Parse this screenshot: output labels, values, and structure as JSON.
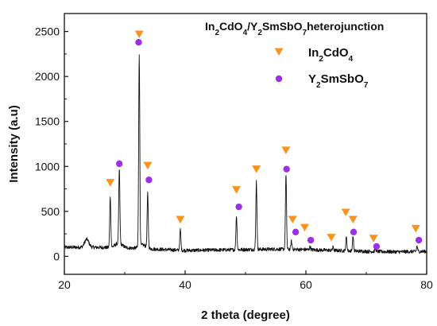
{
  "chart_data": {
    "type": "line",
    "title_parts": [
      {
        "t": "In",
        "sub": false
      },
      {
        "t": "2",
        "sub": true
      },
      {
        "t": "CdO",
        "sub": false
      },
      {
        "t": "4",
        "sub": true
      },
      {
        "t": "/Y",
        "sub": false
      },
      {
        "t": "2",
        "sub": true
      },
      {
        "t": "SmSbO",
        "sub": false
      },
      {
        "t": "7",
        "sub": true
      },
      {
        "t": "heterojunction",
        "sub": false
      }
    ],
    "xlabel": "2 theta (degree)",
    "ylabel": "Intensity (a.u)",
    "xlim": [
      20,
      80
    ],
    "ylim": [
      -200,
      2700
    ],
    "x_ticks": [
      20,
      40,
      60,
      80
    ],
    "y_ticks": [
      0,
      500,
      1000,
      1500,
      2000,
      2500
    ],
    "grid": false,
    "line_color": "#111111",
    "background": {
      "points": [
        [
          20,
          100
        ],
        [
          25,
          100
        ],
        [
          30,
          95
        ],
        [
          35,
          80
        ],
        [
          40,
          65
        ],
        [
          45,
          70
        ],
        [
          50,
          75
        ],
        [
          55,
          80
        ],
        [
          60,
          75
        ],
        [
          65,
          65
        ],
        [
          70,
          55
        ],
        [
          75,
          50
        ],
        [
          80,
          55
        ]
      ],
      "bumps": [
        {
          "center": 23.7,
          "height": 90,
          "width": 0.5
        },
        {
          "center": 29.0,
          "height": 50,
          "width": 0.8
        },
        {
          "center": 33.0,
          "height": 40,
          "width": 0.8
        }
      ]
    },
    "peaks": [
      {
        "x": 27.6,
        "height": 570
      },
      {
        "x": 29.1,
        "height": 830
      },
      {
        "x": 32.4,
        "height": 2150
      },
      {
        "x": 33.8,
        "height": 600
      },
      {
        "x": 39.2,
        "height": 230
      },
      {
        "x": 48.5,
        "height": 380
      },
      {
        "x": 51.8,
        "height": 760
      },
      {
        "x": 56.7,
        "height": 830
      },
      {
        "x": 57.6,
        "height": 90
      },
      {
        "x": 60.7,
        "height": 35
      },
      {
        "x": 64.5,
        "height": 35
      },
      {
        "x": 66.7,
        "height": 150
      },
      {
        "x": 67.8,
        "height": 160
      },
      {
        "x": 71.5,
        "height": 35
      },
      {
        "x": 78.4,
        "height": 60
      }
    ],
    "series": [
      {
        "name": "In2CdO4",
        "label_parts": [
          {
            "t": "In",
            "sub": false
          },
          {
            "t": "2",
            "sub": true
          },
          {
            "t": "CdO",
            "sub": false
          },
          {
            "t": "4",
            "sub": true
          }
        ],
        "marker": "triangle-down",
        "color": "#f7931e",
        "points": [
          [
            27.6,
            820
          ],
          [
            32.4,
            2470
          ],
          [
            33.8,
            1010
          ],
          [
            39.2,
            410
          ],
          [
            48.5,
            740
          ],
          [
            51.8,
            970
          ],
          [
            56.7,
            1180
          ],
          [
            57.8,
            410
          ],
          [
            59.8,
            320
          ],
          [
            64.2,
            210
          ],
          [
            66.6,
            490
          ],
          [
            67.8,
            410
          ],
          [
            71.2,
            200
          ],
          [
            78.2,
            310
          ]
        ]
      },
      {
        "name": "Y2SmSbO7",
        "label_parts": [
          {
            "t": "Y",
            "sub": false
          },
          {
            "t": "2",
            "sub": true
          },
          {
            "t": "SmSbO",
            "sub": false
          },
          {
            "t": "7",
            "sub": true
          }
        ],
        "marker": "circle",
        "color": "#9b30e8",
        "points": [
          [
            29.1,
            1030
          ],
          [
            32.3,
            2380
          ],
          [
            34.0,
            850
          ],
          [
            48.9,
            550
          ],
          [
            56.8,
            970
          ],
          [
            58.3,
            270
          ],
          [
            60.8,
            180
          ],
          [
            67.9,
            270
          ],
          [
            71.7,
            110
          ],
          [
            78.7,
            180
          ]
        ]
      }
    ]
  }
}
